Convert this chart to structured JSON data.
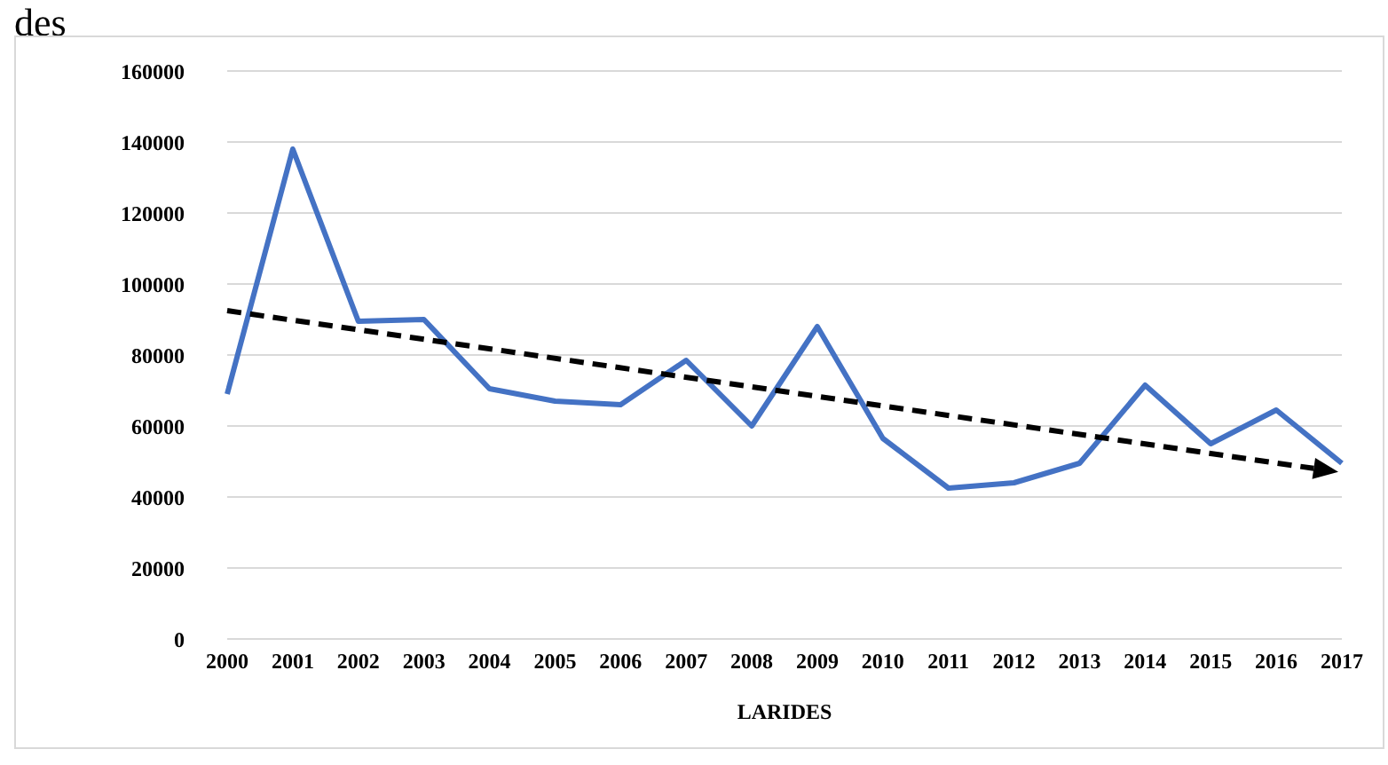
{
  "chart_data": {
    "type": "line",
    "title": "des",
    "xlabel": "LARIDES",
    "categories": [
      "2000",
      "2001",
      "2002",
      "2003",
      "2004",
      "2005",
      "2006",
      "2007",
      "2008",
      "2009",
      "2010",
      "2011",
      "2012",
      "2013",
      "2014",
      "2015",
      "2016",
      "2017"
    ],
    "series": [
      {
        "color": "#4472c4",
        "values": [
          69000,
          138000,
          89500,
          90000,
          70500,
          67000,
          66000,
          78500,
          60000,
          88000,
          56500,
          42500,
          44000,
          49500,
          71500,
          55000,
          64500,
          49500
        ]
      }
    ],
    "ylim": [
      0,
      160000
    ],
    "yticks": [
      0,
      20000,
      40000,
      60000,
      80000,
      100000,
      120000,
      140000,
      160000
    ],
    "grid": "y",
    "marker": "none",
    "legend": false
  }
}
